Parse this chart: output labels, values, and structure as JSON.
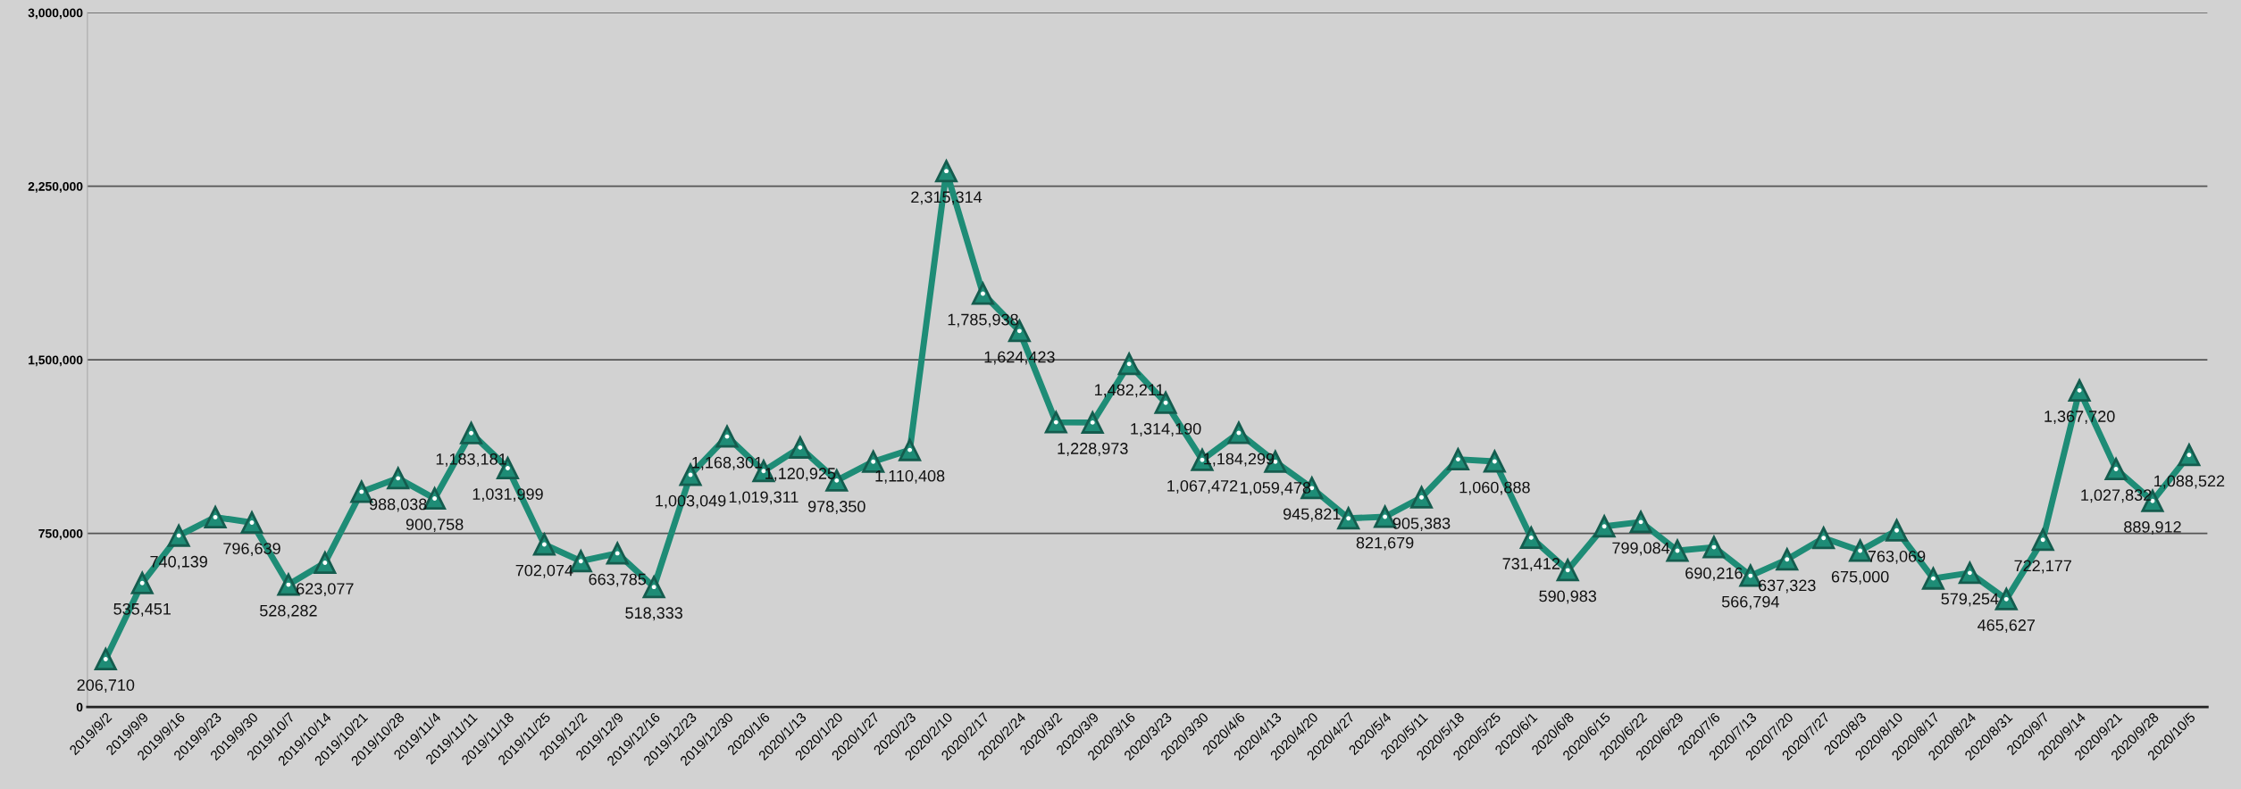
{
  "chart_data": {
    "type": "line",
    "categories": [
      "2019/9/2",
      "2019/9/9",
      "2019/9/16",
      "2019/9/23",
      "2019/9/30",
      "2019/10/7",
      "2019/10/14",
      "2019/10/21",
      "2019/10/28",
      "2019/11/4",
      "2019/11/11",
      "2019/11/18",
      "2019/11/25",
      "2019/12/2",
      "2019/12/9",
      "2019/12/16",
      "2019/12/23",
      "2019/12/30",
      "2020/1/6",
      "2020/1/13",
      "2020/1/20",
      "2020/1/27",
      "2020/2/3",
      "2020/2/10",
      "2020/2/17",
      "2020/2/24",
      "2020/3/2",
      "2020/3/9",
      "2020/3/16",
      "2020/3/23",
      "2020/3/30",
      "2020/4/6",
      "2020/4/13",
      "2020/4/20",
      "2020/4/27",
      "2020/5/4",
      "2020/5/11",
      "2020/5/18",
      "2020/5/25",
      "2020/6/1",
      "2020/6/8",
      "2020/6/15",
      "2020/6/22",
      "2020/6/29",
      "2020/7/6",
      "2020/7/13",
      "2020/7/20",
      "2020/7/27",
      "2020/8/3",
      "2020/8/10",
      "2020/8/17",
      "2020/8/24",
      "2020/8/31",
      "2020/9/7",
      "2020/9/14",
      "2020/9/21",
      "2020/9/28",
      "2020/10/5"
    ],
    "series": [
      {
        "color": "#1e8c76",
        "values": [
          206710,
          535451,
          740139,
          820000,
          796639,
          528282,
          623077,
          930000,
          988038,
          900758,
          1183181,
          1031999,
          702074,
          630000,
          663785,
          518333,
          1003049,
          1168301,
          1019311,
          1120925,
          978350,
          1060000,
          1110408,
          2315314,
          1785938,
          1624423,
          1230000,
          1228973,
          1482211,
          1314190,
          1067472,
          1184299,
          1059478,
          945821,
          815000,
          821679,
          905383,
          1070000,
          1060888,
          731412,
          590983,
          780000,
          799084,
          675000,
          690216,
          566794,
          637323,
          730000,
          675000,
          763069,
          555000,
          579254,
          465627,
          722177,
          1367720,
          1027832,
          889912,
          1088522
        ],
        "value_labels": [
          "206,710",
          "535,451",
          "740,139",
          null,
          "796,639",
          "528,282",
          "623,077",
          null,
          "988,038",
          "900,758",
          "1,183,181",
          "1,031,999",
          "702,074",
          null,
          "663,785",
          "518,333",
          "1,003,049",
          "1,168,301",
          "1,019,311",
          "1,120,925",
          "978,350",
          null,
          "1,110,408",
          "2,315,314",
          "1,785,938",
          "1,624,423",
          null,
          "1,228,973",
          "1,482,211",
          "1,314,190",
          "1,067,472",
          "1,184,299",
          "1,059,478",
          "945,821",
          null,
          "821,679",
          "905,383",
          null,
          "1,060,888",
          "731,412",
          "590,983",
          null,
          "799,084",
          null,
          "690,216",
          "566,794",
          "637,323",
          null,
          "675,000",
          "763,069",
          null,
          "579,254",
          "465,627",
          "722,177",
          "1,367,720",
          "1,027,832",
          "889,912",
          "1,088,522"
        ]
      }
    ],
    "ylim": [
      0,
      3000000
    ],
    "yticks": [
      {
        "value": 0,
        "label": "0"
      },
      {
        "value": 750000,
        "label": "750,000"
      },
      {
        "value": 1500000,
        "label": "1,500,000"
      },
      {
        "value": 2250000,
        "label": "2,250,000"
      },
      {
        "value": 3000000,
        "label": "3,000,000"
      }
    ],
    "grid": "y",
    "marker": "triangle",
    "line_style": "solid"
  }
}
